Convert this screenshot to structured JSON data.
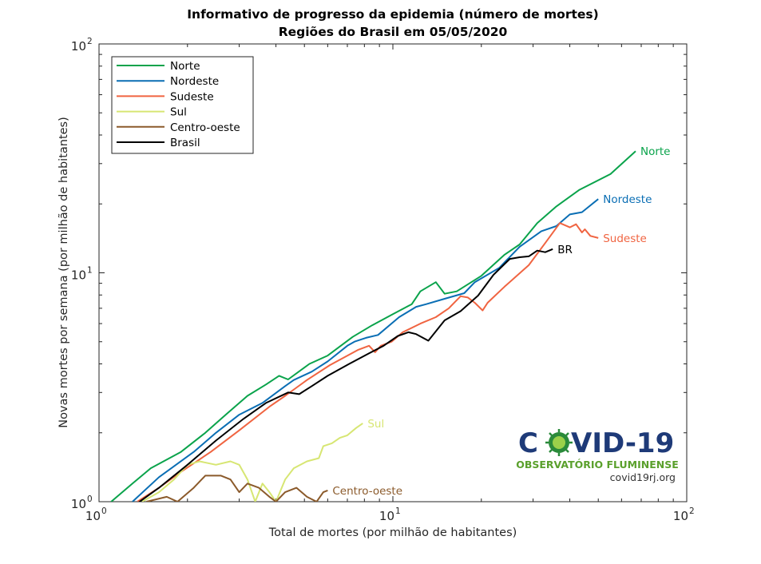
{
  "chart_data": {
    "type": "line",
    "title": "Informativo de progresso da epidemia (número de mortes)",
    "subtitle": "Regiões do Brasil em 05/05/2020",
    "xlabel": "Total de mortes (por milhão de habitantes)",
    "ylabel": "Novas mortes por semana (por milhão de habitantes)",
    "xscale": "log",
    "yscale": "log",
    "xlim": [
      1,
      100
    ],
    "ylim": [
      1,
      100
    ],
    "x_ticks": [
      {
        "base": "10",
        "exp": "0",
        "value": 1
      },
      {
        "base": "10",
        "exp": "1",
        "value": 10
      },
      {
        "base": "10",
        "exp": "2",
        "value": 100
      }
    ],
    "y_ticks": [
      {
        "base": "10",
        "exp": "0",
        "value": 1
      },
      {
        "base": "10",
        "exp": "1",
        "value": 10
      },
      {
        "base": "10",
        "exp": "2",
        "value": 100
      }
    ],
    "grid": false,
    "legend_position": "top-left",
    "series": [
      {
        "name": "Norte",
        "label": "Norte",
        "color": "#0aa34b",
        "points": [
          [
            1.1,
            1.0
          ],
          [
            1.3,
            1.2
          ],
          [
            1.5,
            1.4
          ],
          [
            1.9,
            1.65
          ],
          [
            2.3,
            2.0
          ],
          [
            2.7,
            2.4
          ],
          [
            3.2,
            2.9
          ],
          [
            3.7,
            3.25
          ],
          [
            4.1,
            3.55
          ],
          [
            4.4,
            3.42
          ],
          [
            5.2,
            4.0
          ],
          [
            6.0,
            4.35
          ],
          [
            7.3,
            5.25
          ],
          [
            8.5,
            5.9
          ],
          [
            10.0,
            6.6
          ],
          [
            11.6,
            7.3
          ],
          [
            12.4,
            8.3
          ],
          [
            14.0,
            9.1
          ],
          [
            15.0,
            8.1
          ],
          [
            16.5,
            8.3
          ],
          [
            20.0,
            9.7
          ],
          [
            24.0,
            12.0
          ],
          [
            27.0,
            13.3
          ],
          [
            31.0,
            16.5
          ],
          [
            36.0,
            19.5
          ],
          [
            43.0,
            23.0
          ],
          [
            55.0,
            27.0
          ],
          [
            67.0,
            34.0
          ]
        ]
      },
      {
        "name": "Nordeste",
        "label": "Nordeste",
        "color": "#0a6eb4",
        "points": [
          [
            1.3,
            1.0
          ],
          [
            1.6,
            1.28
          ],
          [
            2.1,
            1.65
          ],
          [
            2.5,
            2.0
          ],
          [
            3.0,
            2.4
          ],
          [
            3.6,
            2.7
          ],
          [
            4.3,
            3.2
          ],
          [
            4.6,
            3.4
          ],
          [
            5.3,
            3.7
          ],
          [
            6.0,
            4.1
          ],
          [
            7.0,
            4.8
          ],
          [
            7.4,
            5.0
          ],
          [
            8.1,
            5.2
          ],
          [
            8.9,
            5.35
          ],
          [
            10.5,
            6.4
          ],
          [
            12.0,
            7.1
          ],
          [
            13.0,
            7.3
          ],
          [
            15.0,
            7.7
          ],
          [
            17.5,
            8.15
          ],
          [
            19.0,
            9.1
          ],
          [
            23.0,
            10.5
          ],
          [
            27.0,
            13.0
          ],
          [
            32.0,
            15.2
          ],
          [
            36.0,
            16.0
          ],
          [
            40.0,
            18.0
          ],
          [
            44.0,
            18.4
          ],
          [
            50.0,
            21.0
          ]
        ]
      },
      {
        "name": "Sudeste",
        "label": "Sudeste",
        "color": "#f06441",
        "points": [
          [
            1.35,
            1.0
          ],
          [
            1.6,
            1.15
          ],
          [
            1.9,
            1.35
          ],
          [
            2.4,
            1.65
          ],
          [
            3.0,
            2.05
          ],
          [
            3.8,
            2.6
          ],
          [
            4.3,
            2.9
          ],
          [
            5.1,
            3.4
          ],
          [
            6.1,
            3.95
          ],
          [
            7.6,
            4.6
          ],
          [
            8.3,
            4.8
          ],
          [
            8.7,
            4.5
          ],
          [
            9.1,
            4.8
          ],
          [
            9.9,
            5.0
          ],
          [
            10.8,
            5.5
          ],
          [
            12.4,
            6.0
          ],
          [
            14.0,
            6.4
          ],
          [
            15.5,
            7.0
          ],
          [
            17.0,
            7.9
          ],
          [
            18.0,
            7.8
          ],
          [
            19.0,
            7.4
          ],
          [
            20.2,
            6.85
          ],
          [
            21.0,
            7.4
          ],
          [
            24.0,
            8.7
          ],
          [
            29.0,
            10.8
          ],
          [
            33.0,
            13.5
          ],
          [
            37.0,
            16.5
          ],
          [
            40.0,
            15.8
          ],
          [
            42.0,
            16.3
          ],
          [
            44.0,
            15.0
          ],
          [
            45.0,
            15.5
          ],
          [
            47.0,
            14.5
          ],
          [
            50.0,
            14.2
          ]
        ]
      },
      {
        "name": "Sul",
        "label": "Sul",
        "color": "#d7e673",
        "points": [
          [
            1.4,
            1.0
          ],
          [
            1.6,
            1.1
          ],
          [
            1.8,
            1.25
          ],
          [
            2.0,
            1.45
          ],
          [
            2.2,
            1.5
          ],
          [
            2.5,
            1.45
          ],
          [
            2.8,
            1.5
          ],
          [
            3.0,
            1.45
          ],
          [
            3.2,
            1.25
          ],
          [
            3.4,
            1.0
          ],
          [
            3.6,
            1.2
          ],
          [
            3.8,
            1.1
          ],
          [
            4.0,
            1.0
          ],
          [
            4.3,
            1.25
          ],
          [
            4.6,
            1.4
          ],
          [
            5.1,
            1.5
          ],
          [
            5.6,
            1.55
          ],
          [
            5.8,
            1.75
          ],
          [
            6.2,
            1.8
          ],
          [
            6.6,
            1.9
          ],
          [
            7.0,
            1.95
          ],
          [
            7.5,
            2.1
          ],
          [
            7.9,
            2.2
          ]
        ]
      },
      {
        "name": "Centro-oeste",
        "label": "Centro-oeste",
        "color": "#8b5a2b",
        "points": [
          [
            1.45,
            1.0
          ],
          [
            1.7,
            1.05
          ],
          [
            1.85,
            1.0
          ],
          [
            2.1,
            1.15
          ],
          [
            2.3,
            1.3
          ],
          [
            2.6,
            1.3
          ],
          [
            2.8,
            1.25
          ],
          [
            3.0,
            1.1
          ],
          [
            3.2,
            1.2
          ],
          [
            3.5,
            1.15
          ],
          [
            3.8,
            1.05
          ],
          [
            4.0,
            1.0
          ],
          [
            4.3,
            1.1
          ],
          [
            4.7,
            1.15
          ],
          [
            5.1,
            1.05
          ],
          [
            5.5,
            1.0
          ],
          [
            5.8,
            1.1
          ],
          [
            6.0,
            1.12
          ]
        ]
      },
      {
        "name": "Brasil",
        "label": "BR",
        "color": "#000000",
        "points": [
          [
            1.3,
            0.95
          ],
          [
            1.6,
            1.15
          ],
          [
            2.0,
            1.45
          ],
          [
            2.5,
            1.85
          ],
          [
            3.1,
            2.3
          ],
          [
            3.7,
            2.7
          ],
          [
            4.4,
            3.0
          ],
          [
            4.8,
            2.95
          ],
          [
            5.3,
            3.2
          ],
          [
            6.0,
            3.55
          ],
          [
            7.1,
            4.0
          ],
          [
            8.3,
            4.45
          ],
          [
            9.3,
            4.8
          ],
          [
            10.4,
            5.3
          ],
          [
            11.3,
            5.5
          ],
          [
            12.0,
            5.4
          ],
          [
            13.2,
            5.05
          ],
          [
            15.0,
            6.2
          ],
          [
            17.0,
            6.8
          ],
          [
            19.5,
            7.95
          ],
          [
            22.0,
            9.8
          ],
          [
            25.0,
            11.5
          ],
          [
            27.0,
            11.7
          ],
          [
            29.0,
            11.8
          ],
          [
            31.0,
            12.5
          ],
          [
            33.0,
            12.3
          ],
          [
            35.0,
            12.7
          ]
        ]
      }
    ]
  },
  "logo": {
    "title_left": "C",
    "title_right": "VID-19",
    "subtitle": "OBSERVATÓRIO FLUMINENSE",
    "url": "covid19rj.org"
  }
}
